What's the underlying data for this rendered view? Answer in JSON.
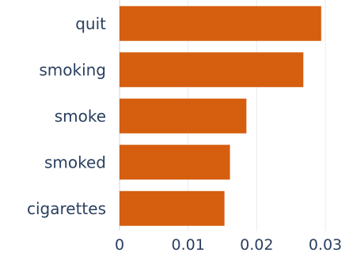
{
  "chart_data": {
    "type": "bar",
    "orientation": "horizontal",
    "categories": [
      "quit",
      "smoking",
      "smoke",
      "smoked",
      "cigarettes"
    ],
    "values": [
      0.0294,
      0.0268,
      0.0185,
      0.0161,
      0.0153
    ],
    "xlim": [
      0,
      0.03
    ],
    "xticks": [
      "0",
      "0.01",
      "0.02",
      "0.03"
    ],
    "xtick_values": [
      0,
      0.01,
      0.02,
      0.03
    ],
    "grid": true,
    "colors": {
      "bar": "#d55e0f",
      "grid": "#e5ebf2",
      "text": "#2a3f5f",
      "background": "#ffffff"
    }
  }
}
